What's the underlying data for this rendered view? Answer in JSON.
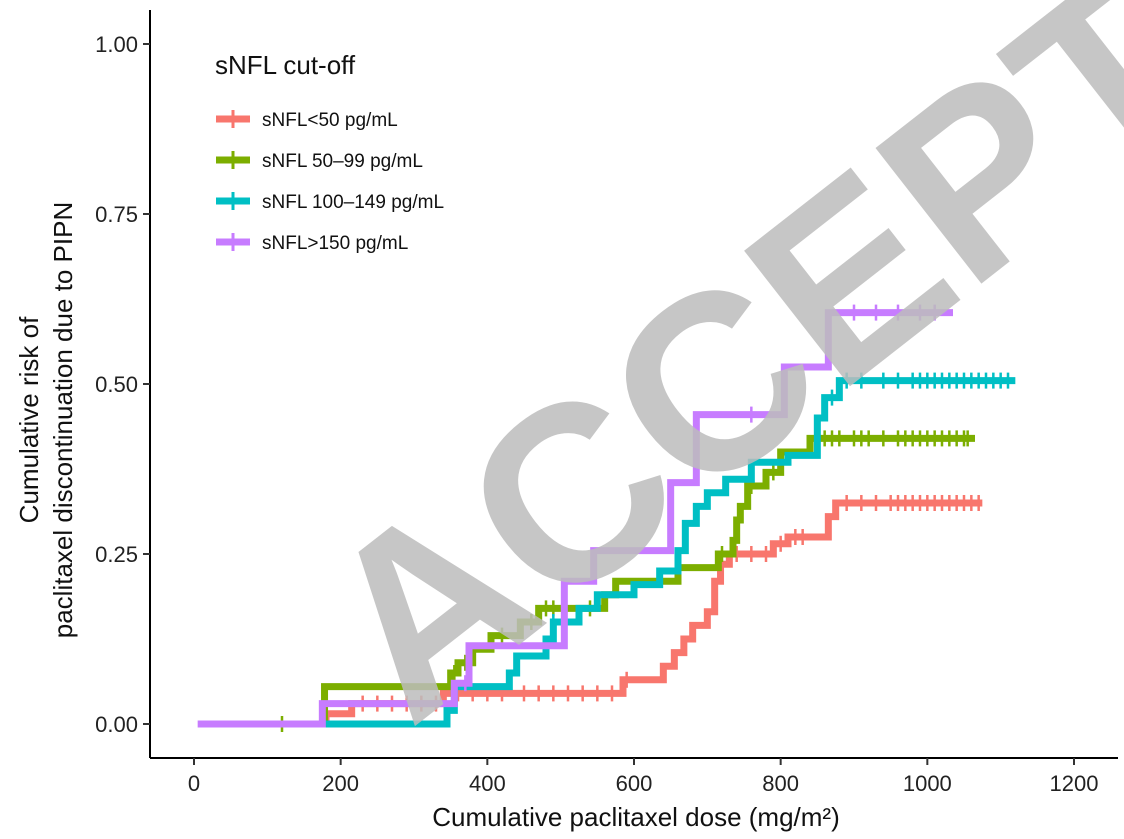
{
  "chart_data": {
    "type": "line",
    "step": true,
    "xlabel": "Cumulative paclitaxel dose (mg/m²)",
    "ylabel_lines": [
      "Cumulative risk of",
      "paclitaxel discontinuation due to PIPN"
    ],
    "xlim": [
      -60,
      1260
    ],
    "ylim": [
      -0.05,
      1.05
    ],
    "x_ticks": [
      0,
      200,
      400,
      600,
      800,
      1000,
      1200
    ],
    "x_tick_labels": [
      "0",
      "200",
      "400",
      "600",
      "800",
      "1000",
      "1200"
    ],
    "y_ticks": [
      0,
      0.25,
      0.5,
      0.75,
      1.0
    ],
    "y_tick_labels": [
      "0.00",
      "0.25",
      "0.50",
      "0.75",
      "1.00"
    ],
    "grid": false,
    "legend": {
      "title": "sNFL cut-off",
      "position": "top-left"
    },
    "series": [
      {
        "name": "sNFL<50 pg/mL",
        "color": "#F8766D",
        "steps": [
          [
            175,
            0
          ],
          [
            180,
            0.015
          ],
          [
            215,
            0.03
          ],
          [
            340,
            0.045
          ],
          [
            585,
            0.065
          ],
          [
            640,
            0.085
          ],
          [
            655,
            0.105
          ],
          [
            668,
            0.125
          ],
          [
            680,
            0.145
          ],
          [
            700,
            0.165
          ],
          [
            710,
            0.21
          ],
          [
            718,
            0.235
          ],
          [
            730,
            0.25
          ],
          [
            790,
            0.265
          ],
          [
            810,
            0.275
          ],
          [
            865,
            0.305
          ],
          [
            875,
            0.325
          ],
          [
            1075,
            0.325
          ]
        ],
        "censored": [
          230,
          250,
          270,
          290,
          310,
          330,
          360,
          380,
          400,
          420,
          450,
          470,
          490,
          510,
          530,
          550,
          570,
          590,
          740,
          760,
          780,
          800,
          820,
          830,
          890,
          910,
          930,
          950,
          960,
          970,
          980,
          990,
          1000,
          1010,
          1020,
          1030,
          1040,
          1050,
          1060,
          1070
        ]
      },
      {
        "name": "sNFL 50–99 pg/mL",
        "color": "#7CAE00",
        "steps": [
          [
            175,
            0
          ],
          [
            178,
            0.055
          ],
          [
            350,
            0.075
          ],
          [
            360,
            0.09
          ],
          [
            380,
            0.11
          ],
          [
            405,
            0.13
          ],
          [
            445,
            0.15
          ],
          [
            470,
            0.17
          ],
          [
            560,
            0.19
          ],
          [
            575,
            0.21
          ],
          [
            660,
            0.23
          ],
          [
            715,
            0.25
          ],
          [
            735,
            0.27
          ],
          [
            740,
            0.3
          ],
          [
            745,
            0.32
          ],
          [
            755,
            0.35
          ],
          [
            780,
            0.37
          ],
          [
            800,
            0.4
          ],
          [
            840,
            0.42
          ],
          [
            1065,
            0.42
          ]
        ],
        "censored": [
          120,
          355,
          370,
          420,
          460,
          480,
          490,
          540,
          720,
          760,
          790,
          850,
          860,
          870,
          880,
          900,
          910,
          920,
          940,
          960,
          970,
          980,
          990,
          1000,
          1010,
          1020,
          1030,
          1040,
          1050,
          1055
        ]
      },
      {
        "name": "sNFL 100–149 pg/mL",
        "color": "#00BFC4",
        "steps": [
          [
            170,
            0
          ],
          [
            345,
            0.02
          ],
          [
            355,
            0.055
          ],
          [
            430,
            0.075
          ],
          [
            440,
            0.1
          ],
          [
            480,
            0.125
          ],
          [
            490,
            0.15
          ],
          [
            525,
            0.17
          ],
          [
            550,
            0.19
          ],
          [
            600,
            0.205
          ],
          [
            635,
            0.225
          ],
          [
            660,
            0.255
          ],
          [
            670,
            0.295
          ],
          [
            685,
            0.32
          ],
          [
            700,
            0.34
          ],
          [
            725,
            0.36
          ],
          [
            760,
            0.385
          ],
          [
            810,
            0.395
          ],
          [
            850,
            0.45
          ],
          [
            860,
            0.48
          ],
          [
            880,
            0.505
          ],
          [
            1120,
            0.505
          ]
        ],
        "censored": [
          490,
          870,
          890,
          910,
          940,
          960,
          980,
          990,
          1000,
          1010,
          1020,
          1030,
          1040,
          1050,
          1060,
          1070,
          1080,
          1090,
          1100,
          1110
        ]
      },
      {
        "name": "sNFL>150 pg/mL",
        "color": "#C77CFF",
        "steps": [
          [
            5,
            0
          ],
          [
            175,
            0.03
          ],
          [
            355,
            0.06
          ],
          [
            375,
            0.115
          ],
          [
            505,
            0.21
          ],
          [
            545,
            0.255
          ],
          [
            650,
            0.355
          ],
          [
            685,
            0.455
          ],
          [
            805,
            0.525
          ],
          [
            865,
            0.605
          ],
          [
            1035,
            0.605
          ]
        ],
        "censored": [
          370,
          760,
          900,
          930,
          960,
          990,
          1010
        ]
      }
    ],
    "watermark": "ACCEPTED"
  }
}
